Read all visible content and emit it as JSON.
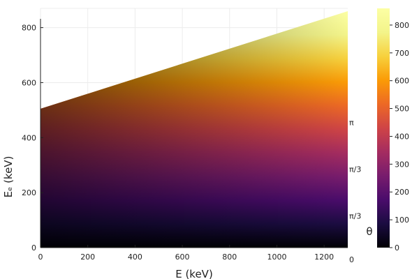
{
  "chart_data": {
    "type": "heatmap",
    "title": "",
    "xlabel": "E (keV)",
    "ylabel": "Eₑ (keV)",
    "xlim": [
      0,
      1300
    ],
    "ylim": [
      0,
      870
    ],
    "xticks": [
      0,
      200,
      400,
      600,
      800,
      1000,
      1200
    ],
    "xtick_labels": [
      "0",
      "200",
      "400",
      "600",
      "800",
      "1000",
      "1200"
    ],
    "yticks": [
      0,
      200,
      400,
      600,
      800
    ],
    "ytick_labels": [
      "0",
      "200",
      "400",
      "600",
      "800"
    ],
    "grid": true,
    "colormap": "inferno",
    "colorbar": {
      "label": "θ",
      "range": [
        0,
        860
      ],
      "ticks": [
        0,
        100,
        200,
        300,
        400,
        500,
        600,
        700,
        800
      ],
      "tick_labels": [
        "0",
        "100",
        "200",
        "300",
        "400",
        "500",
        "600",
        "700",
        "800"
      ]
    },
    "region": {
      "x_range": [
        0,
        1300
      ],
      "upper_boundary": [
        {
          "x": 0,
          "y": 505
        },
        {
          "x": 1300,
          "y": 860
        }
      ],
      "lower_boundary": [
        {
          "x": 0,
          "y": 0
        },
        {
          "x": 1300,
          "y": 0
        }
      ]
    },
    "right_annotations": [
      {
        "text": "π",
        "y": 455
      },
      {
        "text": "π/3",
        "y": 285
      },
      {
        "text": "π/3",
        "y": 115
      },
      {
        "text": "0",
        "y": -50
      }
    ],
    "colors": {
      "background": "#ffffff",
      "grid": "#ececec",
      "axis": "#222222"
    }
  }
}
